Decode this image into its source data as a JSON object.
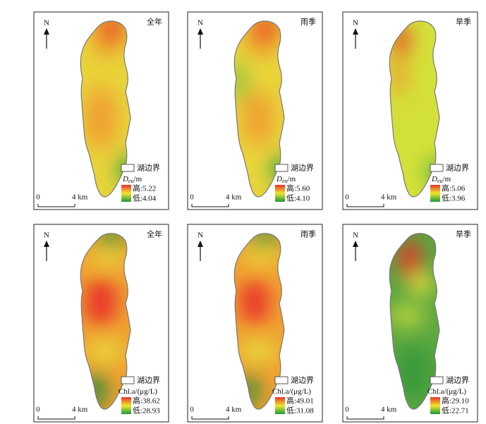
{
  "panels": [
    {
      "north": "N",
      "season": "全年",
      "boundary": "湖边界",
      "variable": {
        "main": "D",
        "sub": "eu",
        "unit": "/m"
      },
      "high": "高:5.22",
      "low": "低:4.04",
      "scale_start": "0",
      "scale_end": "4 km"
    },
    {
      "north": "N",
      "season": "雨季",
      "boundary": "湖边界",
      "variable": {
        "main": "D",
        "sub": "eu",
        "unit": "/m"
      },
      "high": "高:5.60",
      "low": "低:4.10",
      "scale_start": "0",
      "scale_end": "4 km"
    },
    {
      "north": "N",
      "season": "旱季",
      "boundary": "湖边界",
      "variable": {
        "main": "D",
        "sub": "eu",
        "unit": "/m"
      },
      "high": "高:5.06",
      "low": "低:3.96",
      "scale_start": "0",
      "scale_end": "4 km"
    },
    {
      "north": "N",
      "season": "全年",
      "boundary": "湖边界",
      "variable": {
        "main": "Chl.a/(μg/L)"
      },
      "high": "高:38.62",
      "low": "低:28.93",
      "scale_start": "0",
      "scale_end": "4 km"
    },
    {
      "north": "N",
      "season": "雨季",
      "boundary": "湖边界",
      "variable": {
        "main": "Chl.a/(μg/L)"
      },
      "high": "高:49.01",
      "low": "低:31.08",
      "scale_start": "0",
      "scale_end": "4 km"
    },
    {
      "north": "N",
      "season": "旱季",
      "boundary": "湖边界",
      "variable": {
        "main": "Chl.a/(μg/L)"
      },
      "high": "高:29.10",
      "low": "低:22.71",
      "scale_start": "0",
      "scale_end": "4 km"
    }
  ]
}
